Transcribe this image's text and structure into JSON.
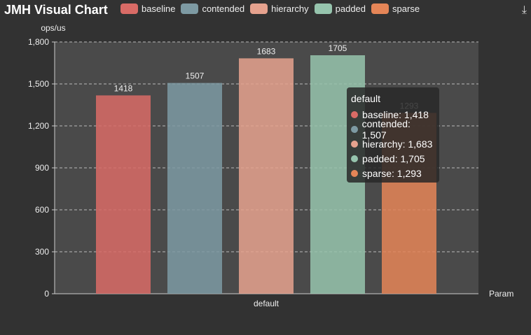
{
  "title": "JMH Visual Chart",
  "download_icon": "download-icon",
  "chart_data": {
    "type": "bar",
    "categories": [
      "default"
    ],
    "series": [
      {
        "name": "baseline",
        "values": [
          1418
        ],
        "color": "#d96b66",
        "label": "1418",
        "tooltip": "baseline: 1,418"
      },
      {
        "name": "contended",
        "values": [
          1507
        ],
        "color": "#7d9aa3",
        "label": "1507",
        "tooltip": "contended: 1,507"
      },
      {
        "name": "hierarchy",
        "values": [
          1683
        ],
        "color": "#e6a28e",
        "label": "1683",
        "tooltip": "hierarchy: 1,683"
      },
      {
        "name": "padded",
        "values": [
          1705
        ],
        "color": "#96c4ad",
        "label": "1705",
        "tooltip": "padded: 1,705"
      },
      {
        "name": "sparse",
        "values": [
          1293
        ],
        "color": "#e58557",
        "label": "1293",
        "tooltip": "sparse: 1,293"
      }
    ],
    "ylabel": "ops/us",
    "xlabel": "Param",
    "ylim": [
      0,
      1800
    ],
    "yticks": [
      "0",
      "300",
      "600",
      "900",
      "1,200",
      "1,500",
      "1,800"
    ],
    "grid": true,
    "legend": "top",
    "tooltip_title": "default"
  }
}
